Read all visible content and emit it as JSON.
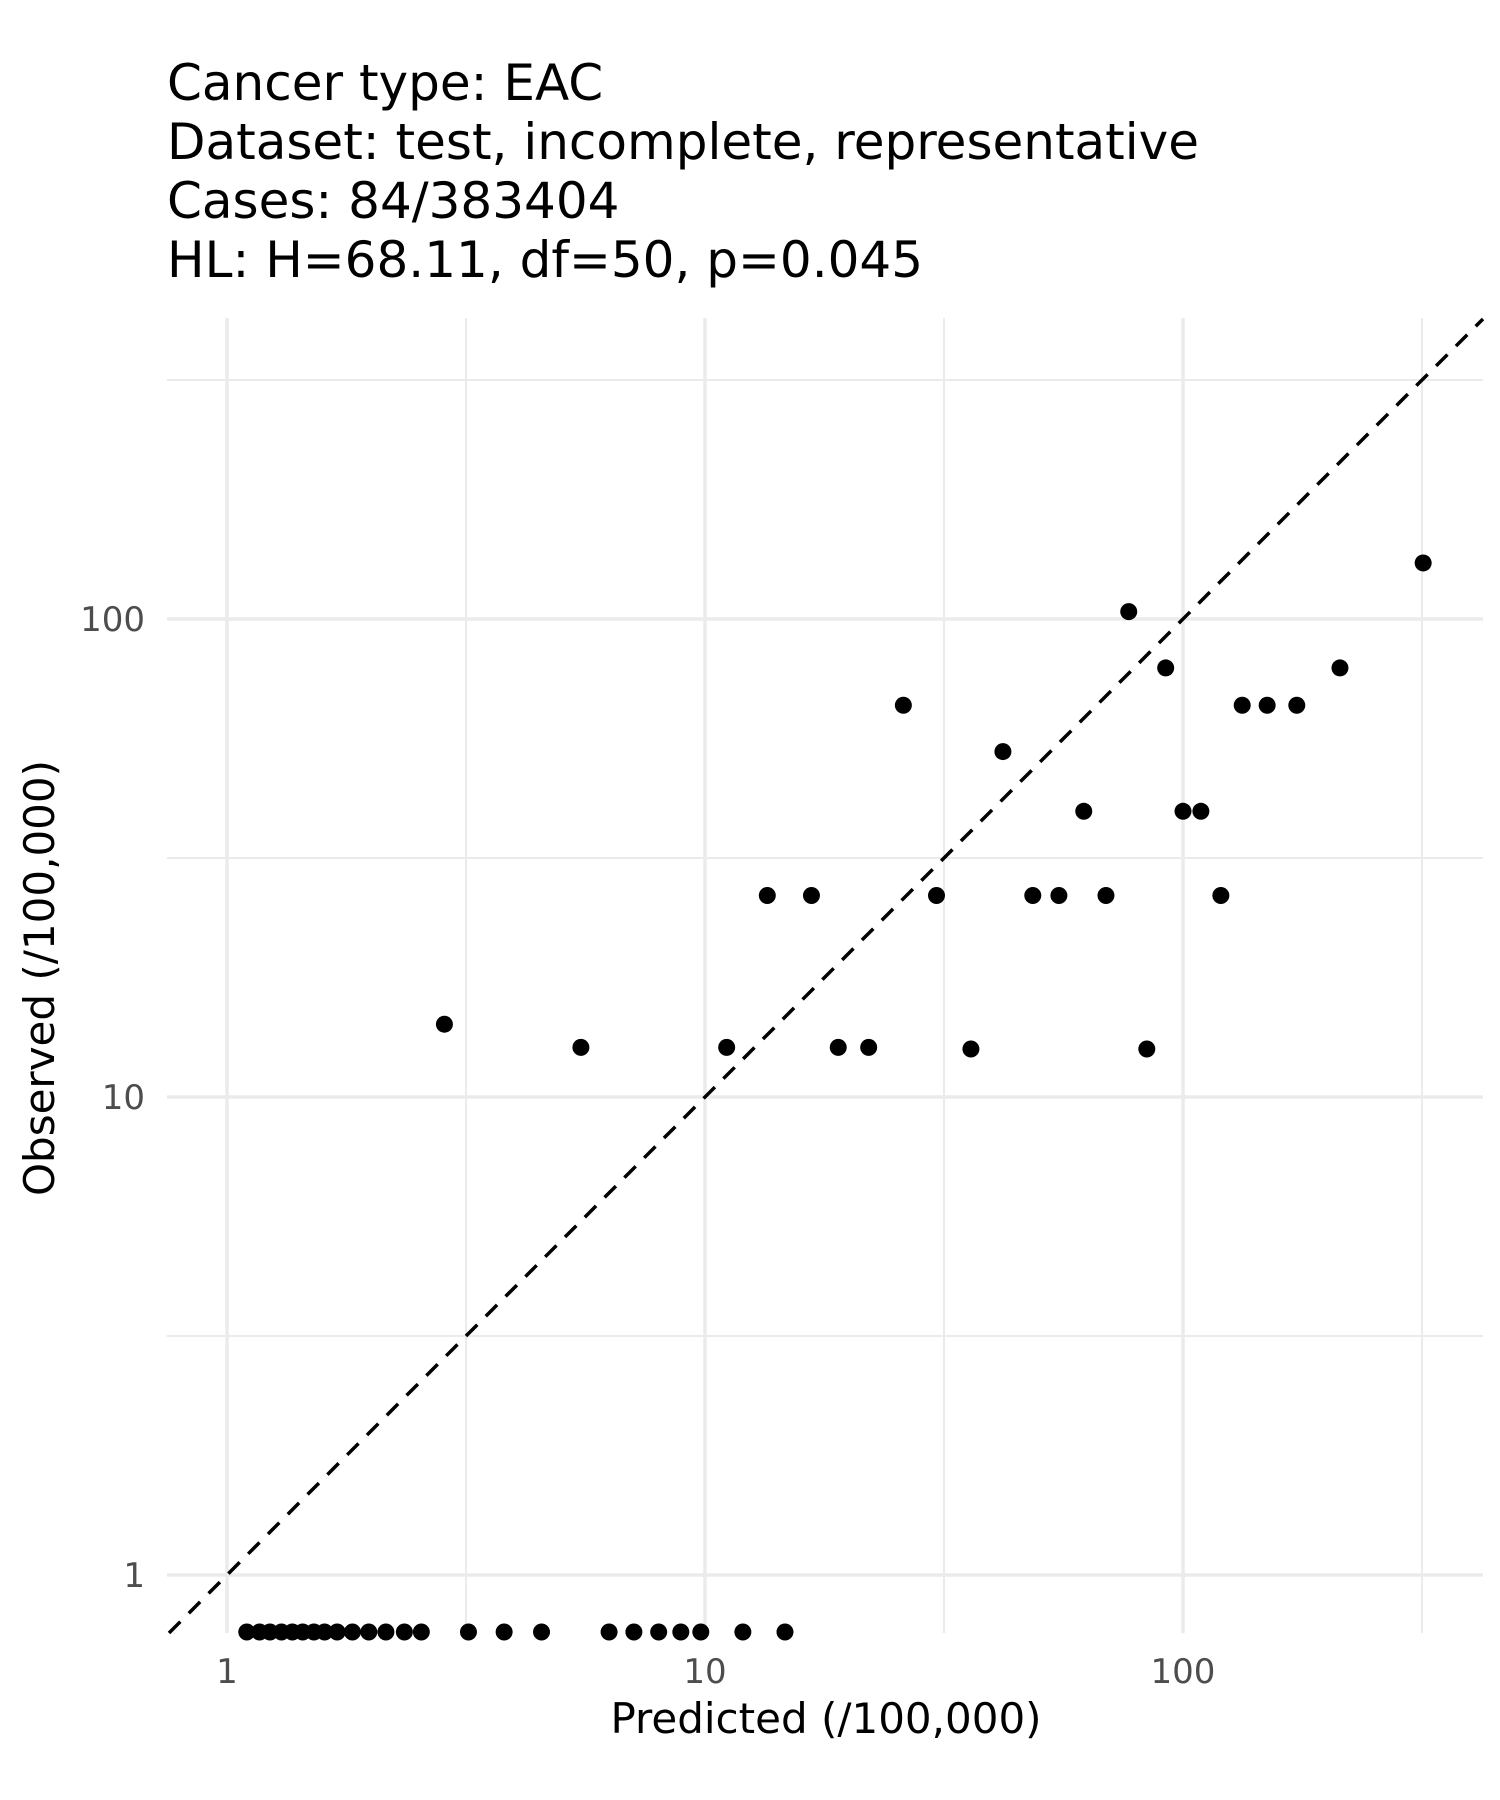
{
  "chart_data": {
    "type": "scatter",
    "title_lines": [
      "Cancer type: EAC",
      "Dataset: test, incomplete, representative",
      "Cases: 84/383404",
      "HL: H=68.11, df=50, p=0.045"
    ],
    "xlabel": "Predicted (/100,000)",
    "ylabel": "Observed (/100,000)",
    "x_scale": "log10",
    "y_scale": "log10",
    "xlim": [
      0.77,
      480
    ],
    "ylim": [
      0.76,
      330
    ],
    "x_ticks": [
      {
        "value": 1,
        "label": "1"
      },
      {
        "value": 10,
        "label": "10"
      },
      {
        "value": 100,
        "label": "100"
      }
    ],
    "y_ticks": [
      {
        "value": 1,
        "label": "1"
      },
      {
        "value": 10,
        "label": "10"
      },
      {
        "value": 100,
        "label": "100"
      }
    ],
    "grid": true,
    "reference_line": {
      "type": "identity",
      "style": "dashed"
    },
    "points": [
      {
        "x": 1.1,
        "y": 0.76
      },
      {
        "x": 1.17,
        "y": 0.76
      },
      {
        "x": 1.23,
        "y": 0.76
      },
      {
        "x": 1.3,
        "y": 0.76
      },
      {
        "x": 1.37,
        "y": 0.76
      },
      {
        "x": 1.44,
        "y": 0.76
      },
      {
        "x": 1.52,
        "y": 0.76
      },
      {
        "x": 1.6,
        "y": 0.76
      },
      {
        "x": 1.7,
        "y": 0.76
      },
      {
        "x": 1.83,
        "y": 0.76
      },
      {
        "x": 1.98,
        "y": 0.76
      },
      {
        "x": 2.15,
        "y": 0.76
      },
      {
        "x": 2.35,
        "y": 0.76
      },
      {
        "x": 2.55,
        "y": 0.76
      },
      {
        "x": 2.85,
        "y": 14.2
      },
      {
        "x": 3.2,
        "y": 0.76
      },
      {
        "x": 3.8,
        "y": 0.76
      },
      {
        "x": 4.55,
        "y": 0.76
      },
      {
        "x": 5.5,
        "y": 12.7
      },
      {
        "x": 6.3,
        "y": 0.76
      },
      {
        "x": 7.1,
        "y": 0.76
      },
      {
        "x": 8.0,
        "y": 0.76
      },
      {
        "x": 8.9,
        "y": 0.76
      },
      {
        "x": 9.8,
        "y": 0.76
      },
      {
        "x": 11.1,
        "y": 12.7
      },
      {
        "x": 12.0,
        "y": 0.76
      },
      {
        "x": 13.5,
        "y": 26.4
      },
      {
        "x": 14.7,
        "y": 0.76
      },
      {
        "x": 16.7,
        "y": 26.4
      },
      {
        "x": 19.0,
        "y": 12.7
      },
      {
        "x": 22.0,
        "y": 12.7
      },
      {
        "x": 26.0,
        "y": 66.0
      },
      {
        "x": 30.5,
        "y": 26.4
      },
      {
        "x": 36.0,
        "y": 12.6
      },
      {
        "x": 42.0,
        "y": 52.8
      },
      {
        "x": 48.5,
        "y": 26.4
      },
      {
        "x": 55.0,
        "y": 26.4
      },
      {
        "x": 62.0,
        "y": 39.6
      },
      {
        "x": 69.0,
        "y": 26.4
      },
      {
        "x": 77.0,
        "y": 103.6
      },
      {
        "x": 84.0,
        "y": 12.6
      },
      {
        "x": 92.0,
        "y": 79.0
      },
      {
        "x": 100.0,
        "y": 39.6
      },
      {
        "x": 109.0,
        "y": 39.6
      },
      {
        "x": 120.0,
        "y": 26.4
      },
      {
        "x": 133.0,
        "y": 66.0
      },
      {
        "x": 150.0,
        "y": 66.0
      },
      {
        "x": 173.0,
        "y": 66.0
      },
      {
        "x": 213.0,
        "y": 79.0
      },
      {
        "x": 318.0,
        "y": 131.0
      }
    ]
  }
}
